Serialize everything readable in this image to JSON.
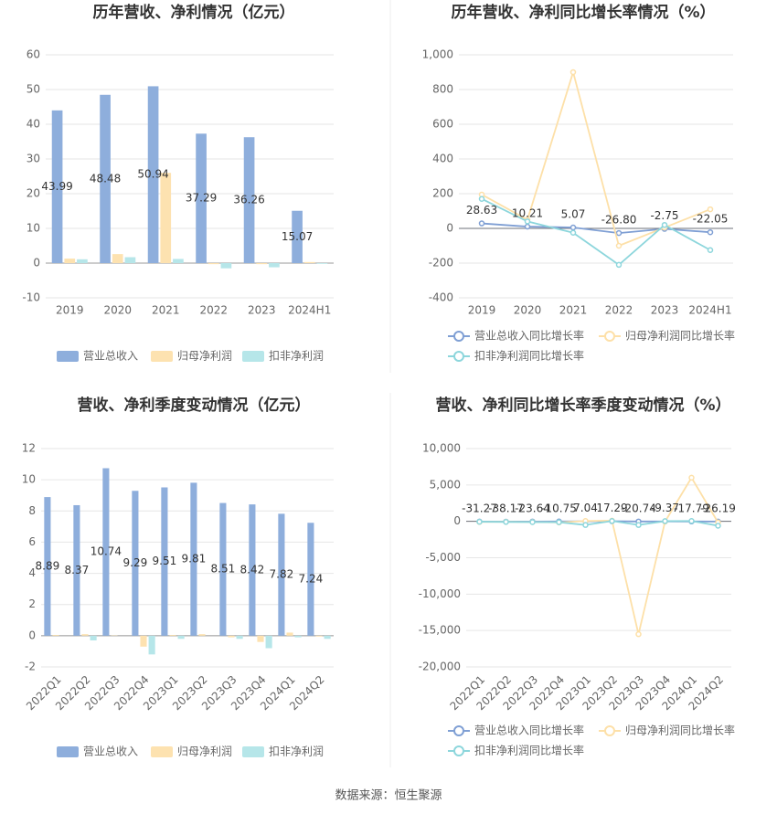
{
  "chart_data": [
    {
      "type": "bar",
      "title": "历年营收、净利情况（亿元）",
      "categories": [
        "2019",
        "2020",
        "2021",
        "2022",
        "2023",
        "2024H1"
      ],
      "series": [
        {
          "name": "营业总收入",
          "color": "#8eaedc",
          "values": [
            43.99,
            48.48,
            50.94,
            37.29,
            36.26,
            15.07
          ],
          "data_labels": true
        },
        {
          "name": "归母净利润",
          "color": "#fde2b0",
          "values": [
            1.3,
            2.6,
            26,
            -0.3,
            -0.3,
            0.3
          ]
        },
        {
          "name": "扣非净利润",
          "color": "#b6e6e9",
          "values": [
            1.1,
            1.7,
            1.2,
            -1.5,
            -1.2,
            -0.2
          ]
        }
      ],
      "ylim": [
        -10,
        60
      ],
      "yticks": [
        -10,
        0,
        10,
        20,
        30,
        40,
        50,
        60
      ],
      "grid": true
    },
    {
      "type": "line",
      "title": "历年营收、净利同比增长率情况（%）",
      "categories": [
        "2019",
        "2020",
        "2021",
        "2022",
        "2023",
        "2024H1"
      ],
      "series": [
        {
          "name": "营业总收入同比增长率",
          "color": "#7f9fd4",
          "values": [
            28.63,
            10.21,
            5.07,
            -26.8,
            -2.75,
            -22.05
          ],
          "value_labels": [
            "28.63",
            "10.21",
            "5.07",
            "-26.80",
            "-2.75",
            "-22.05"
          ]
        },
        {
          "name": "归母净利润同比增长率",
          "color": "#fde0a8",
          "values": [
            195,
            50,
            900,
            -100,
            5,
            110
          ]
        },
        {
          "name": "扣非净利润同比增长率",
          "color": "#8dd6dc",
          "values": [
            170,
            40,
            -25,
            -210,
            20,
            -125
          ]
        }
      ],
      "ylim": [
        -400,
        1000
      ],
      "yticks": [
        -400,
        -200,
        0,
        200,
        400,
        600,
        800,
        {
          "value": 1000,
          "label": "1,000"
        }
      ],
      "grid": true
    },
    {
      "type": "bar",
      "title": "营收、净利季度变动情况（亿元）",
      "categories": [
        "2022Q1",
        "2022Q2",
        "2022Q3",
        "2022Q4",
        "2023Q1",
        "2023Q2",
        "2023Q3",
        "2023Q4",
        "2024Q1",
        "2024Q2"
      ],
      "series": [
        {
          "name": "营业总收入",
          "color": "#8eaedc",
          "values": [
            8.89,
            8.37,
            10.74,
            9.29,
            9.51,
            9.81,
            8.51,
            8.42,
            7.82,
            7.24
          ],
          "data_labels": true
        },
        {
          "name": "归母净利润",
          "color": "#fde2b0",
          "values": [
            0.05,
            0.1,
            0.02,
            -0.7,
            0.05,
            0.1,
            -0.1,
            -0.4,
            0.2,
            -0.05
          ]
        },
        {
          "name": "扣非净利润",
          "color": "#b6e6e9",
          "values": [
            0,
            -0.3,
            0,
            -1.2,
            -0.2,
            0,
            -0.2,
            -0.8,
            -0.1,
            -0.2
          ]
        }
      ],
      "ylim": [
        -2,
        12
      ],
      "yticks": [
        -2,
        0,
        2,
        4,
        6,
        8,
        10,
        12
      ],
      "grid": true
    },
    {
      "type": "line",
      "title": "营收、净利同比增长率季度变动情况（%）",
      "categories": [
        "2022Q1",
        "2022Q2",
        "2022Q3",
        "2022Q4",
        "2023Q1",
        "2023Q2",
        "2023Q3",
        "2023Q4",
        "2024Q1",
        "2024Q2"
      ],
      "series": [
        {
          "name": "营业总收入同比增长率",
          "color": "#7f9fd4",
          "values": [
            -31.27,
            -38.17,
            -23.64,
            -10.75,
            7.04,
            17.29,
            -20.74,
            -9.37,
            -17.79,
            -26.19
          ],
          "data_labels": true
        },
        {
          "name": "归母净利润同比增长率",
          "color": "#fde0a8",
          "values": [
            -80,
            -60,
            -90,
            -150,
            50,
            100,
            -15500,
            -40,
            6000,
            -150
          ]
        },
        {
          "name": "扣非净利润同比增长率",
          "color": "#8dd6dc",
          "values": [
            -50,
            -80,
            -100,
            -120,
            -500,
            50,
            -500,
            30,
            50,
            -600
          ]
        }
      ],
      "ylim": [
        -20000,
        10000
      ],
      "yticks": [
        {
          "value": -20000,
          "label": "-20,000"
        },
        {
          "value": -15000,
          "label": "-15,000"
        },
        {
          "value": -10000,
          "label": "-10,000"
        },
        {
          "value": -5000,
          "label": "-5,000"
        },
        0,
        {
          "value": 5000,
          "label": "5,000"
        },
        {
          "value": 10000,
          "label": "10,000"
        }
      ],
      "grid": true
    }
  ],
  "source": "数据来源：恒生聚源"
}
